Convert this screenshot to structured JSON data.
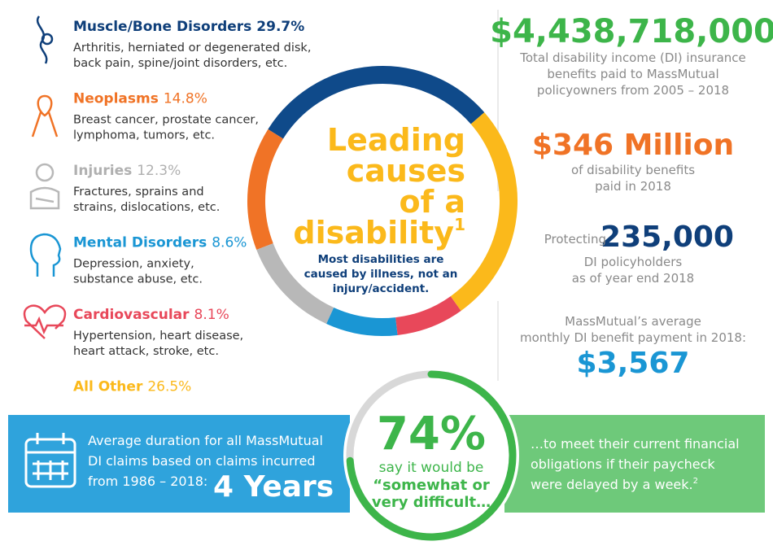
{
  "chart_data": [
    {
      "type": "donut",
      "title": "Leading causes of a disability",
      "title_lines": [
        "Leading",
        "causes",
        "of a",
        "disability"
      ],
      "title_superscript": "1",
      "subtitle_lines": [
        "Most disabilities are",
        "caused by illness, not an",
        "injury/accident."
      ],
      "categories": [
        "Muscle/Bone Disorders",
        "Neoplasms",
        "Injuries",
        "Mental Disorders",
        "Cardiovascular",
        "All Other"
      ],
      "values": [
        29.7,
        14.8,
        12.3,
        8.6,
        8.1,
        26.5
      ],
      "value_labels": [
        "29.7%",
        "14.8%",
        "12.3%",
        "8.6%",
        "8.1%",
        "26.5%"
      ],
      "colors": [
        "#0f4a8a",
        "#f07326",
        "#b8b8b8",
        "#1a96d4",
        "#e8485a",
        "#fbb91b"
      ],
      "descriptions": [
        [
          "Arthritis, herniated or degenerated disk,",
          "back pain, spine/joint disorders, etc."
        ],
        [
          "Breast cancer, prostate cancer,",
          "lymphoma, tumors, etc."
        ],
        [
          "Fractures, sprains and",
          "strains, dislocations, etc."
        ],
        [
          "Depression, anxiety,",
          "substance abuse, etc."
        ],
        [
          "Hypertension, heart disease,",
          "heart attack, stroke, etc."
        ],
        []
      ]
    },
    {
      "type": "gauge",
      "values": [
        74
      ],
      "value_labels": [
        "74%"
      ],
      "color": "#3db54a",
      "text_lines": [
        "say it would be"
      ],
      "emphasis_lines": [
        "“somewhat or",
        "very difficult…"
      ]
    }
  ],
  "stats": [
    {
      "prefix": "",
      "figure": "$4,438,718,000",
      "color": "#3db54a",
      "before": [],
      "after": [
        "Total disability income (DI) insurance",
        "benefits paid to MassMutual",
        "policyowners from 2005 – 2018"
      ]
    },
    {
      "prefix": "",
      "figure": "$346 Million",
      "color": "#f07326",
      "before": [],
      "after": [
        "of disability benefits",
        "paid in 2018"
      ]
    },
    {
      "prefix": "Protecting",
      "figure": "235,000",
      "color": "#0f3f7a",
      "before": [],
      "after": [
        "DI policyholders",
        "as of year end 2018"
      ]
    },
    {
      "prefix": "",
      "figure": "$3,567",
      "color": "#1a96d4",
      "before": [
        "MassMutual’s average",
        "monthly DI benefit payment in 2018:"
      ],
      "after": []
    }
  ],
  "duration": {
    "lines": [
      "Average duration for all MassMutual",
      "DI claims based on claims incurred",
      "from 1986 – 2018:"
    ],
    "figure": "4 Years"
  },
  "paycheck": {
    "lines": [
      "…to meet their current financial",
      "obligations if their paycheck",
      "were delayed by a week."
    ],
    "superscript": "2"
  }
}
